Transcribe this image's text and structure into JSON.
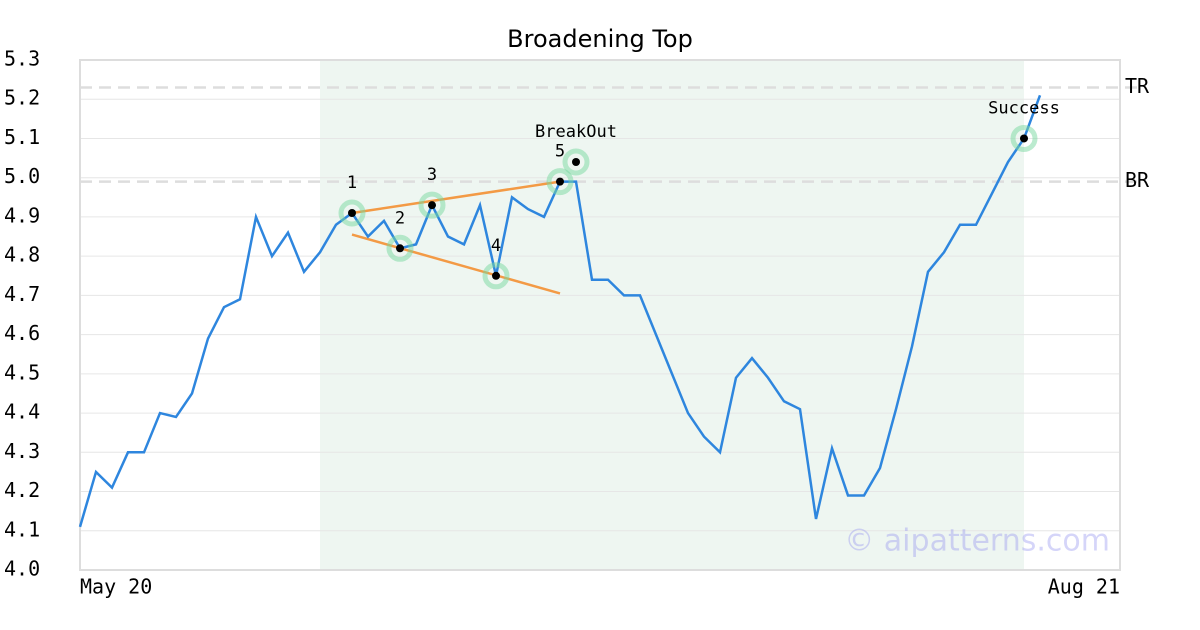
{
  "chart_data": {
    "type": "line",
    "title": "Broadening Top",
    "categories": [
      "May 20",
      null,
      null,
      null,
      null,
      null,
      null,
      null,
      null,
      null,
      null,
      null,
      null,
      null,
      null,
      null,
      null,
      null,
      null,
      null,
      null,
      null,
      null,
      null,
      null,
      null,
      null,
      null,
      null,
      null,
      null,
      null,
      null,
      null,
      null,
      null,
      null,
      null,
      null,
      null,
      null,
      null,
      null,
      null,
      null,
      null,
      null,
      null,
      null,
      null,
      null,
      null,
      null,
      null,
      null,
      null,
      null,
      null,
      null,
      null,
      "Aug 21"
    ],
    "xlim": [
      0,
      65
    ],
    "series": [
      {
        "color": "#2e86de",
        "values": [
          4.11,
          4.25,
          4.21,
          4.3,
          4.3,
          4.4,
          4.39,
          4.45,
          4.59,
          4.67,
          4.69,
          4.9,
          4.8,
          4.86,
          4.76,
          4.81,
          4.88,
          4.91,
          4.85,
          4.89,
          4.82,
          4.83,
          4.93,
          4.85,
          4.83,
          4.93,
          4.75,
          4.95,
          4.92,
          4.9,
          4.99,
          4.99,
          4.74,
          4.74,
          4.7,
          4.7,
          4.6,
          4.5,
          4.4,
          4.34,
          4.3,
          4.49,
          4.54,
          4.49,
          4.43,
          4.41,
          4.13,
          4.31,
          4.19,
          4.19,
          4.26,
          4.41,
          4.57,
          4.76,
          4.81,
          4.88,
          4.88,
          4.96,
          5.04,
          5.1,
          5.21
        ]
      }
    ],
    "ylim": [
      4.0,
      5.3
    ],
    "yticks": [
      {
        "value": 4,
        "label": "4.0"
      },
      4.1,
      4.2,
      4.3,
      4.4,
      4.5,
      4.6,
      4.7,
      4.8,
      4.9,
      {
        "value": 5,
        "label": "5.0"
      },
      5.1,
      5.2,
      5.3
    ],
    "grid": true,
    "shade": {
      "from": 15,
      "to": 59,
      "color": "#eef6f1"
    },
    "levels": [
      {
        "label": "TR",
        "value": 5.23
      },
      {
        "label": "BR",
        "value": 4.99
      }
    ],
    "trend_lines": [
      {
        "color": "#f39a45",
        "x": [
          17,
          30
        ],
        "y": [
          4.91,
          4.99
        ]
      },
      {
        "color": "#f39a45",
        "x": [
          17,
          30
        ],
        "y": [
          4.855,
          4.705
        ]
      }
    ],
    "points": [
      {
        "label": "1",
        "x": 17,
        "y": 4.91
      },
      {
        "label": "2",
        "x": 20,
        "y": 4.82
      },
      {
        "label": "3",
        "x": 22,
        "y": 4.93
      },
      {
        "label": "4",
        "x": 26,
        "y": 4.75
      },
      {
        "label": "5",
        "x": 30,
        "y": 4.99
      },
      {
        "label": "BreakOut",
        "x": 31,
        "y": 5.04
      },
      {
        "label": "Success",
        "x": 59,
        "y": 5.1
      }
    ],
    "watermark": "© aipatterns.com"
  }
}
